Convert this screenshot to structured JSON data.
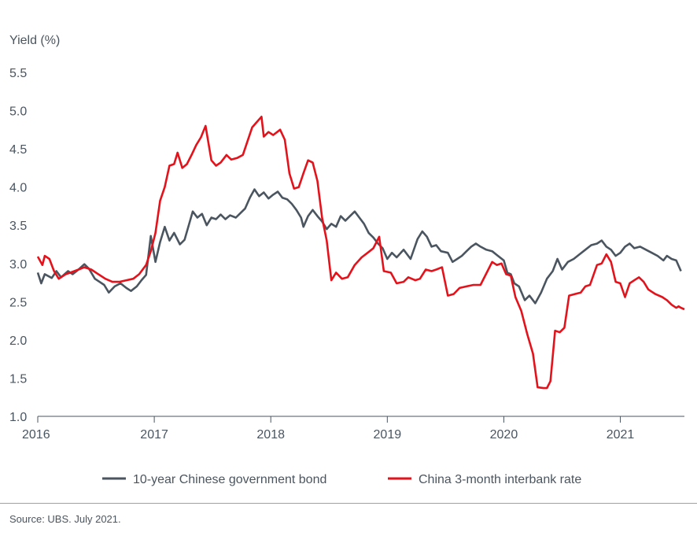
{
  "chart_data": {
    "type": "line",
    "ylabel": "Yield (%)",
    "ylim": [
      1.0,
      5.5
    ],
    "yticks": [
      1.0,
      1.5,
      2.0,
      2.5,
      3.0,
      3.5,
      4.0,
      4.5,
      5.0,
      5.5
    ],
    "ytick_labels": [
      "1.0",
      "1.5",
      "2.0",
      "2.5",
      "3.0",
      "3.5",
      "4.0",
      "4.5",
      "5.0",
      "5.5"
    ],
    "xlim": [
      2016.0,
      2021.55
    ],
    "xticks": [
      2016,
      2017,
      2018,
      2019,
      2020,
      2021
    ],
    "xtick_labels": [
      "2016",
      "2017",
      "2018",
      "2019",
      "2020",
      "2021"
    ],
    "grid": false,
    "legend_position": "bottom",
    "series": [
      {
        "name": "10-year Chinese government bond",
        "color": "#4a5560",
        "points": [
          [
            2016.0,
            2.88
          ],
          [
            2016.03,
            2.74
          ],
          [
            2016.06,
            2.86
          ],
          [
            2016.12,
            2.81
          ],
          [
            2016.16,
            2.9
          ],
          [
            2016.2,
            2.82
          ],
          [
            2016.26,
            2.9
          ],
          [
            2016.3,
            2.86
          ],
          [
            2016.35,
            2.92
          ],
          [
            2016.4,
            2.99
          ],
          [
            2016.44,
            2.93
          ],
          [
            2016.49,
            2.8
          ],
          [
            2016.53,
            2.76
          ],
          [
            2016.57,
            2.72
          ],
          [
            2016.61,
            2.62
          ],
          [
            2016.66,
            2.7
          ],
          [
            2016.71,
            2.74
          ],
          [
            2016.76,
            2.68
          ],
          [
            2016.8,
            2.64
          ],
          [
            2016.85,
            2.7
          ],
          [
            2016.89,
            2.78
          ],
          [
            2016.93,
            2.85
          ],
          [
            2016.97,
            3.36
          ],
          [
            2017.01,
            3.02
          ],
          [
            2017.05,
            3.28
          ],
          [
            2017.09,
            3.48
          ],
          [
            2017.13,
            3.3
          ],
          [
            2017.17,
            3.4
          ],
          [
            2017.22,
            3.25
          ],
          [
            2017.26,
            3.31
          ],
          [
            2017.3,
            3.52
          ],
          [
            2017.33,
            3.68
          ],
          [
            2017.37,
            3.6
          ],
          [
            2017.41,
            3.65
          ],
          [
            2017.45,
            3.5
          ],
          [
            2017.49,
            3.6
          ],
          [
            2017.53,
            3.58
          ],
          [
            2017.57,
            3.64
          ],
          [
            2017.61,
            3.58
          ],
          [
            2017.65,
            3.63
          ],
          [
            2017.7,
            3.6
          ],
          [
            2017.74,
            3.66
          ],
          [
            2017.78,
            3.72
          ],
          [
            2017.82,
            3.86
          ],
          [
            2017.86,
            3.97
          ],
          [
            2017.9,
            3.88
          ],
          [
            2017.94,
            3.93
          ],
          [
            2017.98,
            3.85
          ],
          [
            2018.02,
            3.9
          ],
          [
            2018.06,
            3.94
          ],
          [
            2018.1,
            3.86
          ],
          [
            2018.14,
            3.84
          ],
          [
            2018.18,
            3.78
          ],
          [
            2018.22,
            3.7
          ],
          [
            2018.26,
            3.6
          ],
          [
            2018.28,
            3.48
          ],
          [
            2018.32,
            3.62
          ],
          [
            2018.36,
            3.7
          ],
          [
            2018.4,
            3.62
          ],
          [
            2018.44,
            3.55
          ],
          [
            2018.48,
            3.45
          ],
          [
            2018.52,
            3.52
          ],
          [
            2018.56,
            3.48
          ],
          [
            2018.6,
            3.62
          ],
          [
            2018.64,
            3.56
          ],
          [
            2018.68,
            3.62
          ],
          [
            2018.72,
            3.68
          ],
          [
            2018.76,
            3.6
          ],
          [
            2018.8,
            3.52
          ],
          [
            2018.84,
            3.4
          ],
          [
            2018.88,
            3.34
          ],
          [
            2018.92,
            3.26
          ],
          [
            2018.96,
            3.2
          ],
          [
            2019.0,
            3.06
          ],
          [
            2019.04,
            3.14
          ],
          [
            2019.08,
            3.08
          ],
          [
            2019.14,
            3.18
          ],
          [
            2019.2,
            3.06
          ],
          [
            2019.26,
            3.32
          ],
          [
            2019.3,
            3.42
          ],
          [
            2019.34,
            3.35
          ],
          [
            2019.38,
            3.22
          ],
          [
            2019.42,
            3.24
          ],
          [
            2019.46,
            3.16
          ],
          [
            2019.52,
            3.14
          ],
          [
            2019.56,
            3.02
          ],
          [
            2019.6,
            3.06
          ],
          [
            2019.64,
            3.1
          ],
          [
            2019.68,
            3.16
          ],
          [
            2019.72,
            3.22
          ],
          [
            2019.76,
            3.26
          ],
          [
            2019.8,
            3.22
          ],
          [
            2019.85,
            3.18
          ],
          [
            2019.9,
            3.16
          ],
          [
            2019.95,
            3.1
          ],
          [
            2020.0,
            3.04
          ],
          [
            2020.03,
            2.88
          ],
          [
            2020.06,
            2.86
          ],
          [
            2020.09,
            2.74
          ],
          [
            2020.13,
            2.7
          ],
          [
            2020.18,
            2.52
          ],
          [
            2020.22,
            2.58
          ],
          [
            2020.27,
            2.48
          ],
          [
            2020.32,
            2.62
          ],
          [
            2020.37,
            2.8
          ],
          [
            2020.42,
            2.9
          ],
          [
            2020.46,
            3.06
          ],
          [
            2020.5,
            2.92
          ],
          [
            2020.55,
            3.02
          ],
          [
            2020.6,
            3.06
          ],
          [
            2020.65,
            3.12
          ],
          [
            2020.7,
            3.18
          ],
          [
            2020.75,
            3.24
          ],
          [
            2020.8,
            3.26
          ],
          [
            2020.84,
            3.3
          ],
          [
            2020.88,
            3.22
          ],
          [
            2020.92,
            3.18
          ],
          [
            2020.96,
            3.1
          ],
          [
            2021.0,
            3.14
          ],
          [
            2021.04,
            3.22
          ],
          [
            2021.08,
            3.26
          ],
          [
            2021.12,
            3.2
          ],
          [
            2021.17,
            3.22
          ],
          [
            2021.22,
            3.18
          ],
          [
            2021.27,
            3.14
          ],
          [
            2021.32,
            3.1
          ],
          [
            2021.37,
            3.04
          ],
          [
            2021.4,
            3.1
          ],
          [
            2021.44,
            3.06
          ],
          [
            2021.48,
            3.04
          ],
          [
            2021.52,
            2.9
          ]
        ]
      },
      {
        "name": "China 3-month interbank rate",
        "color": "#e4121b",
        "points": [
          [
            2016.0,
            3.09
          ],
          [
            2016.04,
            2.98
          ],
          [
            2016.06,
            3.1
          ],
          [
            2016.1,
            3.06
          ],
          [
            2016.14,
            2.9
          ],
          [
            2016.18,
            2.8
          ],
          [
            2016.24,
            2.86
          ],
          [
            2016.28,
            2.88
          ],
          [
            2016.35,
            2.92
          ],
          [
            2016.4,
            2.95
          ],
          [
            2016.46,
            2.92
          ],
          [
            2016.52,
            2.86
          ],
          [
            2016.58,
            2.8
          ],
          [
            2016.64,
            2.76
          ],
          [
            2016.7,
            2.76
          ],
          [
            2016.76,
            2.78
          ],
          [
            2016.82,
            2.8
          ],
          [
            2016.87,
            2.86
          ],
          [
            2016.93,
            2.98
          ],
          [
            2016.97,
            3.16
          ],
          [
            2017.01,
            3.4
          ],
          [
            2017.05,
            3.82
          ],
          [
            2017.09,
            4.0
          ],
          [
            2017.13,
            4.28
          ],
          [
            2017.17,
            4.3
          ],
          [
            2017.2,
            4.45
          ],
          [
            2017.24,
            4.25
          ],
          [
            2017.28,
            4.3
          ],
          [
            2017.32,
            4.42
          ],
          [
            2017.36,
            4.55
          ],
          [
            2017.4,
            4.65
          ],
          [
            2017.44,
            4.8
          ],
          [
            2017.49,
            4.35
          ],
          [
            2017.53,
            4.28
          ],
          [
            2017.57,
            4.32
          ],
          [
            2017.62,
            4.42
          ],
          [
            2017.66,
            4.36
          ],
          [
            2017.71,
            4.38
          ],
          [
            2017.76,
            4.42
          ],
          [
            2017.8,
            4.6
          ],
          [
            2017.84,
            4.78
          ],
          [
            2017.88,
            4.85
          ],
          [
            2017.92,
            4.92
          ],
          [
            2017.94,
            4.66
          ],
          [
            2017.98,
            4.72
          ],
          [
            2018.02,
            4.68
          ],
          [
            2018.08,
            4.75
          ],
          [
            2018.12,
            4.62
          ],
          [
            2018.16,
            4.18
          ],
          [
            2018.2,
            3.98
          ],
          [
            2018.24,
            4.0
          ],
          [
            2018.28,
            4.18
          ],
          [
            2018.32,
            4.35
          ],
          [
            2018.36,
            4.32
          ],
          [
            2018.4,
            4.08
          ],
          [
            2018.44,
            3.6
          ],
          [
            2018.48,
            3.3
          ],
          [
            2018.52,
            2.78
          ],
          [
            2018.56,
            2.88
          ],
          [
            2018.61,
            2.8
          ],
          [
            2018.66,
            2.82
          ],
          [
            2018.72,
            2.98
          ],
          [
            2018.78,
            3.08
          ],
          [
            2018.84,
            3.15
          ],
          [
            2018.88,
            3.2
          ],
          [
            2018.93,
            3.35
          ],
          [
            2018.97,
            2.9
          ],
          [
            2019.03,
            2.88
          ],
          [
            2019.08,
            2.74
          ],
          [
            2019.14,
            2.76
          ],
          [
            2019.18,
            2.82
          ],
          [
            2019.24,
            2.78
          ],
          [
            2019.28,
            2.8
          ],
          [
            2019.33,
            2.92
          ],
          [
            2019.38,
            2.9
          ],
          [
            2019.42,
            2.92
          ],
          [
            2019.47,
            2.95
          ],
          [
            2019.52,
            2.58
          ],
          [
            2019.57,
            2.6
          ],
          [
            2019.62,
            2.68
          ],
          [
            2019.68,
            2.7
          ],
          [
            2019.74,
            2.72
          ],
          [
            2019.8,
            2.72
          ],
          [
            2019.86,
            2.9
          ],
          [
            2019.9,
            3.02
          ],
          [
            2019.94,
            2.98
          ],
          [
            2019.98,
            3.0
          ],
          [
            2020.02,
            2.86
          ],
          [
            2020.06,
            2.84
          ],
          [
            2020.1,
            2.56
          ],
          [
            2020.15,
            2.38
          ],
          [
            2020.2,
            2.08
          ],
          [
            2020.25,
            1.82
          ],
          [
            2020.29,
            1.38
          ],
          [
            2020.34,
            1.37
          ],
          [
            2020.37,
            1.37
          ],
          [
            2020.4,
            1.46
          ],
          [
            2020.44,
            2.12
          ],
          [
            2020.48,
            2.1
          ],
          [
            2020.52,
            2.16
          ],
          [
            2020.56,
            2.58
          ],
          [
            2020.61,
            2.6
          ],
          [
            2020.66,
            2.62
          ],
          [
            2020.7,
            2.7
          ],
          [
            2020.74,
            2.72
          ],
          [
            2020.8,
            2.98
          ],
          [
            2020.84,
            3.0
          ],
          [
            2020.88,
            3.12
          ],
          [
            2020.92,
            3.02
          ],
          [
            2020.96,
            2.76
          ],
          [
            2021.0,
            2.74
          ],
          [
            2021.04,
            2.56
          ],
          [
            2021.08,
            2.74
          ],
          [
            2021.12,
            2.78
          ],
          [
            2021.16,
            2.82
          ],
          [
            2021.2,
            2.76
          ],
          [
            2021.24,
            2.66
          ],
          [
            2021.3,
            2.6
          ],
          [
            2021.36,
            2.56
          ],
          [
            2021.4,
            2.52
          ],
          [
            2021.44,
            2.46
          ],
          [
            2021.48,
            2.42
          ],
          [
            2021.5,
            2.44
          ],
          [
            2021.52,
            2.42
          ],
          [
            2021.55,
            2.4
          ]
        ]
      }
    ]
  },
  "footer": {
    "source": "Source: UBS. July 2021."
  }
}
